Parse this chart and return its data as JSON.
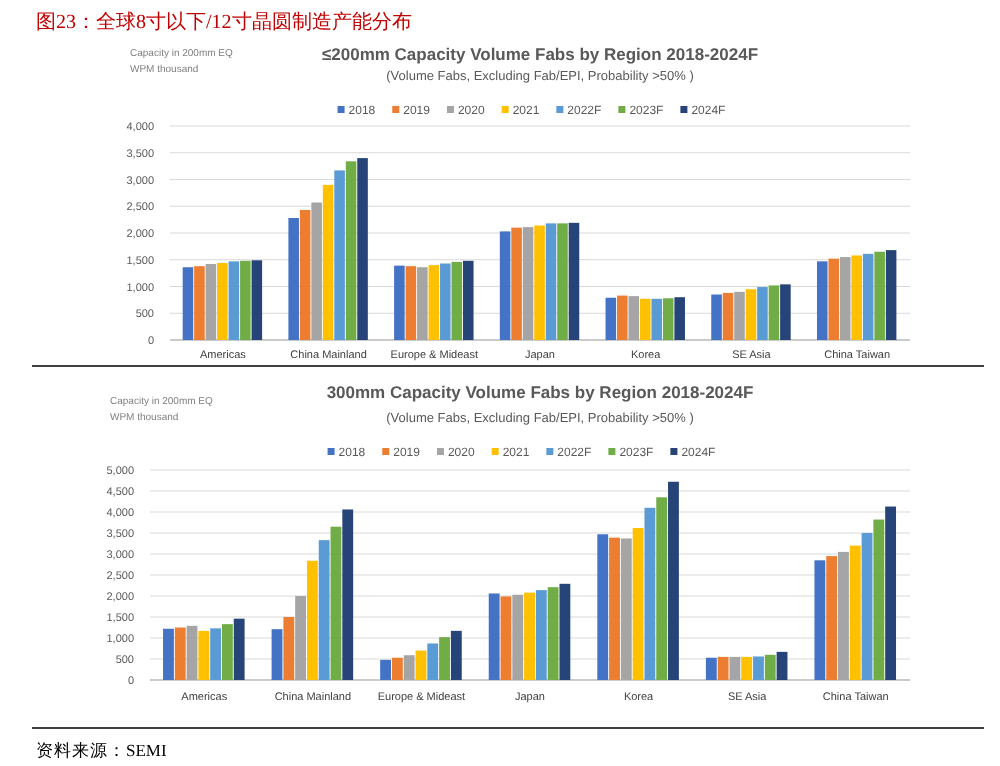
{
  "chart_data": [
    {
      "type": "bar",
      "title": "≤200mm Capacity Volume Fabs by Region 2018-2024F",
      "subtitle": "(Volume Fabs, Excluding Fab/EPI, Probability >50% )",
      "ylabel": "Capacity in 200mm EQ WPM thousand",
      "annotations": [
        "图23：全球8寸以下/12寸晶圆制造产能分布"
      ],
      "categories": [
        "Americas",
        "China Mainland",
        "Europe & Mideast",
        "Japan",
        "Korea",
        "SE Asia",
        "China Taiwan"
      ],
      "series": [
        {
          "name": "2018",
          "color": "#4472c4",
          "values": [
            1360,
            2280,
            1390,
            2030,
            790,
            850,
            1470
          ]
        },
        {
          "name": "2019",
          "color": "#ed7d31",
          "values": [
            1380,
            2430,
            1380,
            2100,
            830,
            880,
            1520
          ]
        },
        {
          "name": "2020",
          "color": "#a5a5a5",
          "values": [
            1420,
            2570,
            1360,
            2110,
            820,
            900,
            1550
          ]
        },
        {
          "name": "2021",
          "color": "#ffc000",
          "values": [
            1440,
            2900,
            1400,
            2140,
            770,
            950,
            1580
          ]
        },
        {
          "name": "2022F",
          "color": "#5b9bd5",
          "values": [
            1470,
            3170,
            1430,
            2180,
            770,
            990,
            1610
          ]
        },
        {
          "name": "2023F",
          "color": "#70ad47",
          "values": [
            1480,
            3340,
            1460,
            2180,
            780,
            1020,
            1650
          ]
        },
        {
          "name": "2024F",
          "color": "#264478",
          "values": [
            1490,
            3400,
            1480,
            2190,
            800,
            1040,
            1680
          ]
        }
      ],
      "ylim": [
        0,
        4000
      ],
      "yticks": [
        0,
        {
          "value": 500,
          "label": "500"
        },
        {
          "value": 1000,
          "label": "1,000"
        },
        {
          "value": 1500,
          "label": "1,500"
        },
        {
          "value": 2000,
          "label": "2,000"
        },
        {
          "value": 2500,
          "label": "2,500"
        },
        {
          "value": 3000,
          "label": "3,000"
        },
        {
          "value": 3500,
          "label": "3,500"
        },
        {
          "value": 4000,
          "label": "4,000"
        }
      ],
      "grid": "y",
      "legend": "top"
    },
    {
      "type": "bar",
      "title": "300mm Capacity Volume Fabs by Region 2018-2024F",
      "subtitle": "(Volume Fabs, Excluding Fab/EPI, Probability >50% )",
      "ylabel": "Capacity in 200mm EQ WPM thousand",
      "annotations": [
        "资料来源：SEMI"
      ],
      "categories": [
        "Americas",
        "China Mainland",
        "Europe & Mideast",
        "Japan",
        "Korea",
        "SE Asia",
        "China Taiwan"
      ],
      "series": [
        {
          "name": "2018",
          "color": "#4472c4",
          "values": [
            1220,
            1210,
            480,
            2060,
            3470,
            530,
            2850
          ]
        },
        {
          "name": "2019",
          "color": "#ed7d31",
          "values": [
            1250,
            1500,
            530,
            1990,
            3390,
            550,
            2950
          ]
        },
        {
          "name": "2020",
          "color": "#a5a5a5",
          "values": [
            1290,
            2000,
            590,
            2030,
            3370,
            550,
            3050
          ]
        },
        {
          "name": "2021",
          "color": "#ffc000",
          "values": [
            1170,
            2840,
            700,
            2080,
            3620,
            550,
            3200
          ]
        },
        {
          "name": "2022F",
          "color": "#5b9bd5",
          "values": [
            1230,
            3330,
            870,
            2140,
            4100,
            560,
            3500
          ]
        },
        {
          "name": "2023F",
          "color": "#70ad47",
          "values": [
            1330,
            3650,
            1020,
            2210,
            4350,
            600,
            3820
          ]
        },
        {
          "name": "2024F",
          "color": "#264478",
          "values": [
            1460,
            4060,
            1170,
            2290,
            4720,
            670,
            4130
          ]
        }
      ],
      "ylim": [
        0,
        5000
      ],
      "yticks": [
        0,
        {
          "value": 500,
          "label": "500"
        },
        {
          "value": 1000,
          "label": "1,000"
        },
        {
          "value": 1500,
          "label": "1,500"
        },
        {
          "value": 2000,
          "label": "2,000"
        },
        {
          "value": 2500,
          "label": "2,500"
        },
        {
          "value": 3000,
          "label": "3,000"
        },
        {
          "value": 3500,
          "label": "3,500"
        },
        {
          "value": 4000,
          "label": "4,000"
        },
        {
          "value": 4500,
          "label": "4,500"
        },
        {
          "value": 5000,
          "label": "5,000"
        }
      ],
      "grid": "y",
      "legend": "top"
    }
  ]
}
